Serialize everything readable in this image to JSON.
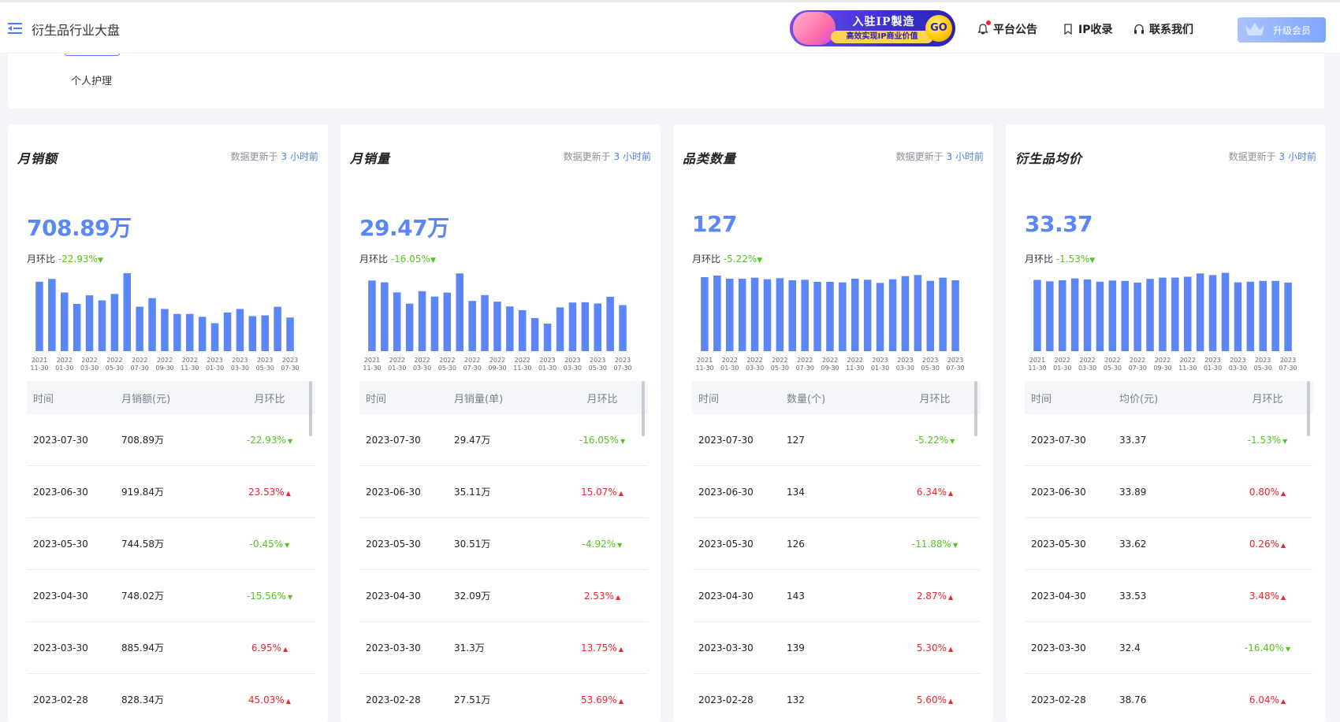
{
  "header": {
    "title": "衍生品行业大盘",
    "banner": {
      "line1": "入驻IP製造",
      "line2": "高效实现IP商业价值",
      "go": "GO"
    },
    "nav": [
      {
        "label": "平台公告"
      },
      {
        "label": "IP收录"
      },
      {
        "label": "联系我们"
      }
    ],
    "upgrade_label": "升级会员"
  },
  "filter": {
    "category": "个人护理"
  },
  "colors": {
    "accent": "#5b86f5",
    "bar": "#5b86f5",
    "up": "#f5222d",
    "down": "#52c41a"
  },
  "x_labels": [
    [
      "2021",
      "11-30"
    ],
    [
      "2022",
      "01-30"
    ],
    [
      "2022",
      "03-30"
    ],
    [
      "2022",
      "05-30"
    ],
    [
      "2022",
      "07-30"
    ],
    [
      "2022",
      "09-30"
    ],
    [
      "2022",
      "11-30"
    ],
    [
      "2023",
      "01-30"
    ],
    [
      "2023",
      "03-30"
    ],
    [
      "2023",
      "05-30"
    ],
    [
      "2023",
      "07-30"
    ]
  ],
  "cards": [
    {
      "title": "月销额",
      "update_prefix": "数据更新于",
      "update_num": "3",
      "update_suffix": "小时前",
      "value": "708.89万",
      "mom_label": "月环比",
      "mom_value": "-22.93%",
      "columns": [
        "时间",
        "月销额(元)",
        "月环比"
      ],
      "rows": [
        {
          "date": "2023-07-30",
          "value": "708.89万",
          "change": "-22.93%",
          "dir": "down"
        },
        {
          "date": "2023-06-30",
          "value": "919.84万",
          "change": "23.53%",
          "dir": "up"
        },
        {
          "date": "2023-05-30",
          "value": "744.58万",
          "change": "-0.45%",
          "dir": "down"
        },
        {
          "date": "2023-04-30",
          "value": "748.02万",
          "change": "-15.56%",
          "dir": "down"
        },
        {
          "date": "2023-03-30",
          "value": "885.94万",
          "change": "6.95%",
          "dir": "up"
        },
        {
          "date": "2023-02-28",
          "value": "828.34万",
          "change": "45.03%",
          "dir": "up"
        }
      ]
    },
    {
      "title": "月销量",
      "update_prefix": "数据更新于",
      "update_num": "3",
      "update_suffix": "小时前",
      "value": "29.47万",
      "mom_label": "月环比",
      "mom_value": "-16.05%",
      "columns": [
        "时间",
        "月销量(单)",
        "月环比"
      ],
      "rows": [
        {
          "date": "2023-07-30",
          "value": "29.47万",
          "change": "-16.05%",
          "dir": "down"
        },
        {
          "date": "2023-06-30",
          "value": "35.11万",
          "change": "15.07%",
          "dir": "up"
        },
        {
          "date": "2023-05-30",
          "value": "30.51万",
          "change": "-4.92%",
          "dir": "down"
        },
        {
          "date": "2023-04-30",
          "value": "32.09万",
          "change": "2.53%",
          "dir": "up"
        },
        {
          "date": "2023-03-30",
          "value": "31.3万",
          "change": "13.75%",
          "dir": "up"
        },
        {
          "date": "2023-02-28",
          "value": "27.51万",
          "change": "53.69%",
          "dir": "up"
        }
      ]
    },
    {
      "title": "品类数量",
      "update_prefix": "数据更新于",
      "update_num": "3",
      "update_suffix": "小时前",
      "value": "127",
      "mom_label": "月环比",
      "mom_value": "-5.22%",
      "columns": [
        "时间",
        "数量(个)",
        "月环比"
      ],
      "rows": [
        {
          "date": "2023-07-30",
          "value": "127",
          "change": "-5.22%",
          "dir": "down"
        },
        {
          "date": "2023-06-30",
          "value": "134",
          "change": "6.34%",
          "dir": "up"
        },
        {
          "date": "2023-05-30",
          "value": "126",
          "change": "-11.88%",
          "dir": "down"
        },
        {
          "date": "2023-04-30",
          "value": "143",
          "change": "2.87%",
          "dir": "up"
        },
        {
          "date": "2023-03-30",
          "value": "139",
          "change": "5.30%",
          "dir": "up"
        },
        {
          "date": "2023-02-28",
          "value": "132",
          "change": "5.60%",
          "dir": "up"
        }
      ]
    },
    {
      "title": "衍生品均价",
      "update_prefix": "数据更新于",
      "update_num": "3",
      "update_suffix": "小时前",
      "value": "33.37",
      "mom_label": "月环比",
      "mom_value": "-1.53%",
      "columns": [
        "时间",
        "均价(元)",
        "月环比"
      ],
      "rows": [
        {
          "date": "2023-07-30",
          "value": "33.37",
          "change": "-1.53%",
          "dir": "down"
        },
        {
          "date": "2023-06-30",
          "value": "33.89",
          "change": "0.80%",
          "dir": "up"
        },
        {
          "date": "2023-05-30",
          "value": "33.62",
          "change": "0.26%",
          "dir": "up"
        },
        {
          "date": "2023-04-30",
          "value": "33.53",
          "change": "3.48%",
          "dir": "up"
        },
        {
          "date": "2023-03-30",
          "value": "32.4",
          "change": "-16.40%",
          "dir": "down"
        },
        {
          "date": "2023-02-28",
          "value": "38.76",
          "change": "6.04%",
          "dir": "up"
        }
      ]
    }
  ],
  "chart_data": [
    {
      "type": "bar",
      "series": [
        {
          "values": [
            970,
            1010,
            820,
            660,
            780,
            710,
            800,
            1090,
            620,
            740,
            590,
            520,
            520,
            480,
            390,
            540,
            590,
            490,
            500,
            620,
            470
          ]
        }
      ],
      "ylim": [
        0,
        1100
      ]
    },
    {
      "type": "bar",
      "series": [
        {
          "values": [
            30.5,
            29.7,
            25.4,
            20.5,
            25.9,
            23.6,
            25.3,
            33.6,
            21.7,
            24.2,
            21.4,
            19.3,
            17.7,
            14.3,
            11.9,
            18.9,
            21.0,
            21.1,
            20.6,
            23.5,
            19.9
          ]
        }
      ],
      "ylim": [
        0,
        34
      ]
    },
    {
      "type": "bar",
      "series": [
        {
          "values": [
            141,
            144,
            138,
            138,
            140,
            137,
            139,
            135,
            136,
            132,
            132,
            131,
            138,
            136,
            130,
            137,
            143,
            145,
            134,
            140,
            135
          ]
        }
      ],
      "ylim": [
        0,
        150
      ]
    },
    {
      "type": "bar",
      "series": [
        {
          "values": [
            34.4,
            33.7,
            34.2,
            35.1,
            34.6,
            33.5,
            34.1,
            33.9,
            33.1,
            34.9,
            35.5,
            35.5,
            35.9,
            37.5,
            36.7,
            37.8,
            33.2,
            33.5,
            33.9,
            33.9,
            33.1
          ]
        }
      ],
      "ylim": [
        0,
        38
      ]
    }
  ]
}
